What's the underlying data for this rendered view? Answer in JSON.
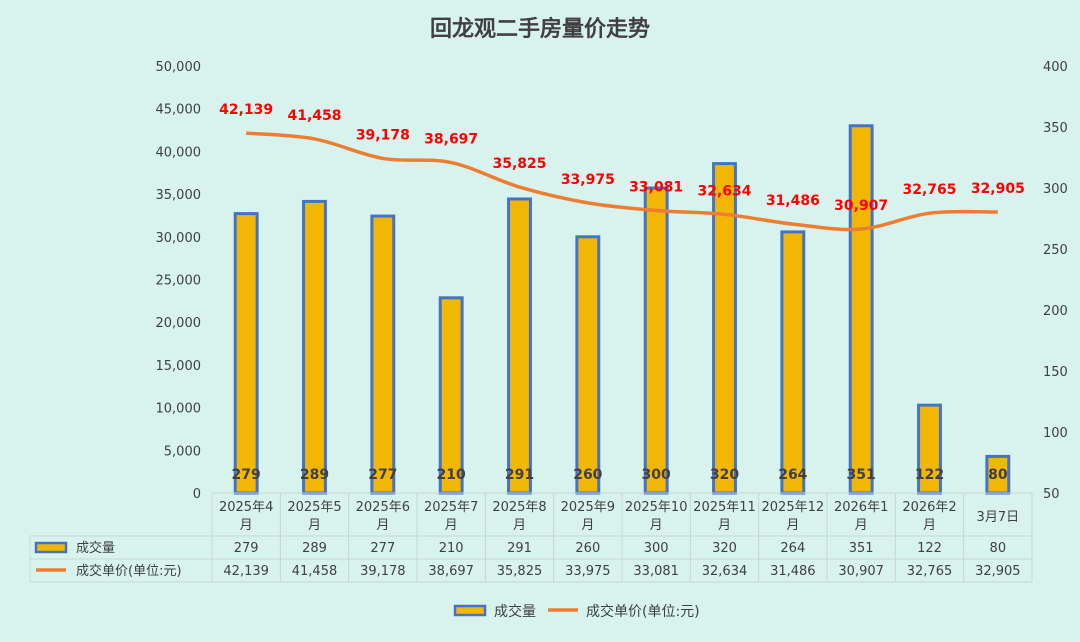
{
  "chart_data": {
    "type": "bar+line",
    "title": "回龙观二手房量价走势",
    "categories": [
      [
        "2025年4",
        "月"
      ],
      [
        "2025年5",
        "月"
      ],
      [
        "2025年6",
        "月"
      ],
      [
        "2025年7",
        "月"
      ],
      [
        "2025年8",
        "月"
      ],
      [
        "2025年9",
        "月"
      ],
      [
        "2025年10",
        "月"
      ],
      [
        "2025年11",
        "月"
      ],
      [
        "2025年12",
        "月"
      ],
      [
        "2026年1",
        "月"
      ],
      [
        "2026年2",
        "月"
      ],
      [
        "3月7日"
      ]
    ],
    "series": [
      {
        "name": "成交量",
        "type": "bar",
        "axis": "right",
        "color": "#f2b705",
        "border": "#4472c4",
        "values": [
          279,
          289,
          277,
          210,
          291,
          260,
          300,
          320,
          264,
          351,
          122,
          80
        ],
        "labels": [
          "279",
          "289",
          "277",
          "210",
          "291",
          "260",
          "300",
          "320",
          "264",
          "351",
          "122",
          "80"
        ]
      },
      {
        "name": "成交单价(单位:元)",
        "type": "line",
        "axis": "left",
        "color": "#ed7d31",
        "values": [
          42139,
          41458,
          39178,
          38697,
          35825,
          33975,
          33081,
          32634,
          31486,
          30907,
          32765,
          32905
        ],
        "labels": [
          "42,139",
          "41,458",
          "39,178",
          "38,697",
          "35,825",
          "33,975",
          "33,081",
          "32,634",
          "31,486",
          "30,907",
          "32,765",
          "32,905"
        ]
      }
    ],
    "y_left": {
      "min": 0,
      "max": 50000,
      "ticks": [
        "0",
        "5,000",
        "10,000",
        "15,000",
        "20,000",
        "25,000",
        "30,000",
        "35,000",
        "40,000",
        "45,000",
        "50,000"
      ]
    },
    "y_right": {
      "min": 50,
      "max": 400,
      "ticks": [
        "50",
        "100",
        "150",
        "200",
        "250",
        "300",
        "350",
        "400"
      ]
    },
    "data_table": true,
    "legend": {
      "position": "bottom",
      "items": [
        "成交量",
        "成交单价(单位:元)"
      ]
    },
    "label_color": "#ff0000",
    "grid": false
  }
}
